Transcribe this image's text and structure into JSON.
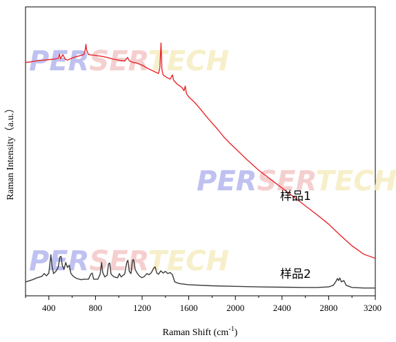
{
  "watermark": {
    "text_parts": [
      "PER",
      "SER",
      "TECH"
    ],
    "colors": [
      "#b4b6ee",
      "#f3c7c7",
      "#f5ecc0"
    ]
  },
  "chart_data": {
    "type": "line",
    "xlabel": "Raman Shift (cm",
    "xlabel_superscript": "-1",
    "xlabel_tail": ")",
    "ylabel": "Raman Intensity（a.u.）",
    "xlim": [
      200,
      3200
    ],
    "ylim": [
      0,
      1
    ],
    "y_ticks_shown": false,
    "x_ticks": [
      400,
      800,
      1200,
      1600,
      2000,
      2400,
      2800,
      3200
    ],
    "series": [
      {
        "name": "样品1",
        "color": "#e8262a",
        "points": [
          [
            200,
            0.83
          ],
          [
            250,
            0.832
          ],
          [
            300,
            0.836
          ],
          [
            350,
            0.838
          ],
          [
            400,
            0.84
          ],
          [
            450,
            0.842
          ],
          [
            480,
            0.845
          ],
          [
            490,
            0.86
          ],
          [
            500,
            0.843
          ],
          [
            520,
            0.858
          ],
          [
            540,
            0.842
          ],
          [
            560,
            0.838
          ],
          [
            600,
            0.846
          ],
          [
            650,
            0.852
          ],
          [
            700,
            0.858
          ],
          [
            712,
            0.875
          ],
          [
            718,
            0.895
          ],
          [
            724,
            0.874
          ],
          [
            740,
            0.858
          ],
          [
            800,
            0.855
          ],
          [
            850,
            0.852
          ],
          [
            900,
            0.848
          ],
          [
            950,
            0.842
          ],
          [
            1000,
            0.838
          ],
          [
            1050,
            0.835
          ],
          [
            1075,
            0.848
          ],
          [
            1090,
            0.836
          ],
          [
            1120,
            0.83
          ],
          [
            1150,
            0.828
          ],
          [
            1200,
            0.82
          ],
          [
            1250,
            0.808
          ],
          [
            1300,
            0.798
          ],
          [
            1340,
            0.79
          ],
          [
            1352,
            0.81
          ],
          [
            1362,
            0.9
          ],
          [
            1370,
            0.805
          ],
          [
            1380,
            0.785
          ],
          [
            1410,
            0.776
          ],
          [
            1440,
            0.77
          ],
          [
            1460,
            0.785
          ],
          [
            1470,
            0.766
          ],
          [
            1500,
            0.752
          ],
          [
            1540,
            0.74
          ],
          [
            1560,
            0.728
          ],
          [
            1570,
            0.745
          ],
          [
            1580,
            0.718
          ],
          [
            1600,
            0.706
          ],
          [
            1650,
            0.686
          ],
          [
            1700,
            0.662
          ],
          [
            1750,
            0.636
          ],
          [
            1800,
            0.612
          ],
          [
            1850,
            0.588
          ],
          [
            1900,
            0.562
          ],
          [
            1950,
            0.54
          ],
          [
            2000,
            0.52
          ],
          [
            2100,
            0.48
          ],
          [
            2200,
            0.442
          ],
          [
            2300,
            0.41
          ],
          [
            2400,
            0.378
          ],
          [
            2500,
            0.346
          ],
          [
            2600,
            0.314
          ],
          [
            2700,
            0.282
          ],
          [
            2800,
            0.248
          ],
          [
            2900,
            0.208
          ],
          [
            3000,
            0.17
          ],
          [
            3100,
            0.14
          ],
          [
            3200,
            0.125
          ]
        ]
      },
      {
        "name": "样品2",
        "color": "#3a3a3a",
        "points": [
          [
            200,
            0.04
          ],
          [
            260,
            0.048
          ],
          [
            300,
            0.055
          ],
          [
            340,
            0.06
          ],
          [
            360,
            0.07
          ],
          [
            380,
            0.062
          ],
          [
            400,
            0.072
          ],
          [
            410,
            0.11
          ],
          [
            418,
            0.138
          ],
          [
            426,
            0.1
          ],
          [
            440,
            0.07
          ],
          [
            460,
            0.078
          ],
          [
            480,
            0.092
          ],
          [
            495,
            0.13
          ],
          [
            505,
            0.132
          ],
          [
            515,
            0.1
          ],
          [
            530,
            0.085
          ],
          [
            545,
            0.11
          ],
          [
            560,
            0.092
          ],
          [
            575,
            0.1
          ],
          [
            590,
            0.07
          ],
          [
            610,
            0.06
          ],
          [
            640,
            0.052
          ],
          [
            680,
            0.048
          ],
          [
            700,
            0.05
          ],
          [
            740,
            0.05
          ],
          [
            760,
            0.068
          ],
          [
            772,
            0.072
          ],
          [
            784,
            0.05
          ],
          [
            820,
            0.05
          ],
          [
            840,
            0.068
          ],
          [
            852,
            0.11
          ],
          [
            862,
            0.074
          ],
          [
            880,
            0.058
          ],
          [
            900,
            0.064
          ],
          [
            912,
            0.105
          ],
          [
            922,
            0.108
          ],
          [
            934,
            0.068
          ],
          [
            960,
            0.058
          ],
          [
            990,
            0.055
          ],
          [
            1005,
            0.07
          ],
          [
            1020,
            0.058
          ],
          [
            1050,
            0.068
          ],
          [
            1068,
            0.11
          ],
          [
            1078,
            0.118
          ],
          [
            1090,
            0.078
          ],
          [
            1105,
            0.07
          ],
          [
            1118,
            0.118
          ],
          [
            1128,
            0.12
          ],
          [
            1140,
            0.085
          ],
          [
            1160,
            0.07
          ],
          [
            1180,
            0.06
          ],
          [
            1200,
            0.055
          ],
          [
            1220,
            0.06
          ],
          [
            1240,
            0.07
          ],
          [
            1260,
            0.066
          ],
          [
            1280,
            0.074
          ],
          [
            1300,
            0.09
          ],
          [
            1312,
            0.094
          ],
          [
            1326,
            0.072
          ],
          [
            1342,
            0.068
          ],
          [
            1360,
            0.08
          ],
          [
            1380,
            0.072
          ],
          [
            1400,
            0.078
          ],
          [
            1420,
            0.07
          ],
          [
            1440,
            0.074
          ],
          [
            1460,
            0.066
          ],
          [
            1480,
            0.04
          ],
          [
            1520,
            0.034
          ],
          [
            1600,
            0.03
          ],
          [
            1800,
            0.026
          ],
          [
            2000,
            0.024
          ],
          [
            2200,
            0.022
          ],
          [
            2400,
            0.021
          ],
          [
            2600,
            0.02
          ],
          [
            2700,
            0.02
          ],
          [
            2800,
            0.022
          ],
          [
            2840,
            0.028
          ],
          [
            2860,
            0.04
          ],
          [
            2875,
            0.052
          ],
          [
            2885,
            0.045
          ],
          [
            2895,
            0.054
          ],
          [
            2910,
            0.04
          ],
          [
            2930,
            0.045
          ],
          [
            2950,
            0.028
          ],
          [
            3000,
            0.02
          ],
          [
            3100,
            0.018
          ],
          [
            3200,
            0.018
          ]
        ]
      }
    ]
  }
}
